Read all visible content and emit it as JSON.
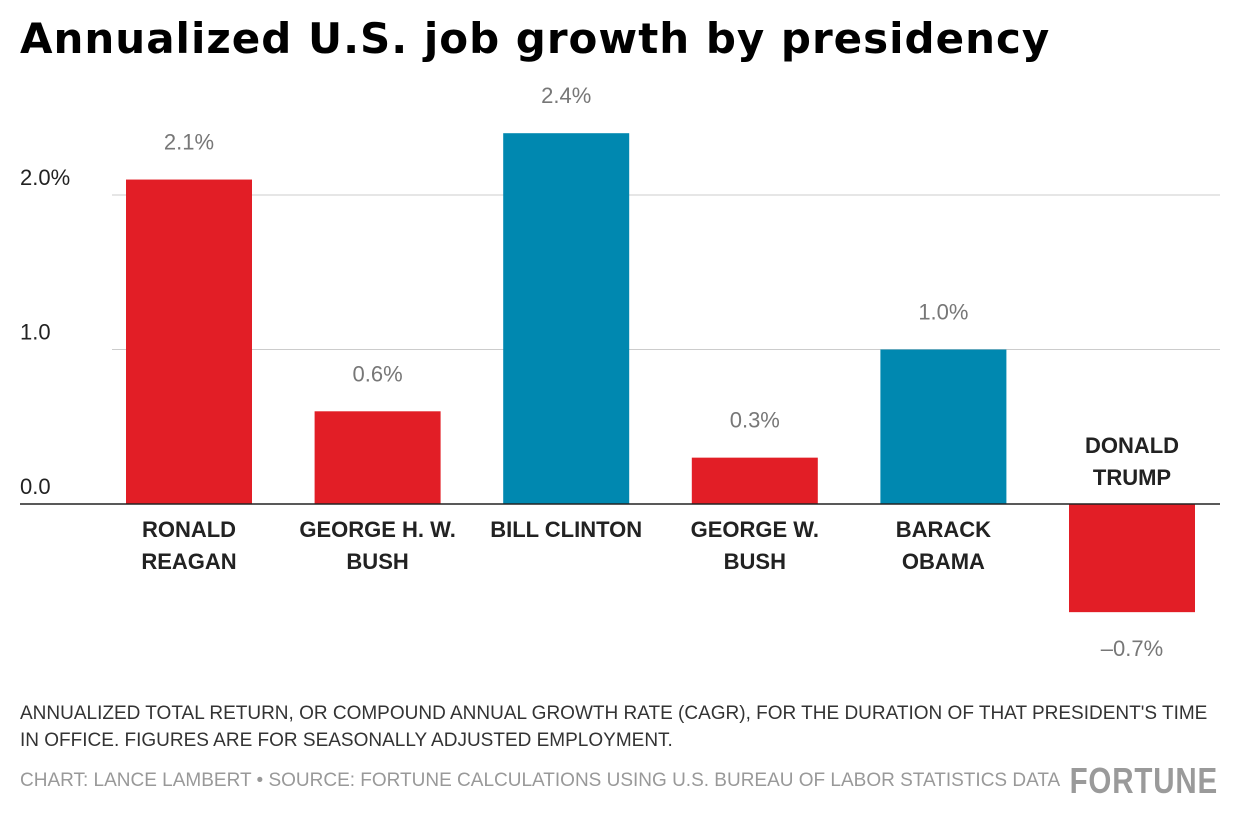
{
  "chart_data": {
    "type": "bar",
    "title": "Annualized U.S. job growth by presidency",
    "categories": [
      [
        "RONALD",
        "REAGAN"
      ],
      [
        "GEORGE H. W.",
        "BUSH"
      ],
      [
        "BILL CLINTON"
      ],
      [
        "GEORGE W.",
        "BUSH"
      ],
      [
        "BARACK",
        "OBAMA"
      ],
      [
        "DONALD",
        "TRUMP"
      ]
    ],
    "values": [
      2.1,
      0.6,
      2.4,
      0.3,
      1.0,
      -0.7
    ],
    "value_labels": [
      "2.1%",
      "0.6%",
      "2.4%",
      "0.3%",
      "1.0%",
      "–0.7%"
    ],
    "colors": [
      "#e21e26",
      "#e21e26",
      "#0088b0",
      "#e21e26",
      "#0088b0",
      "#e21e26"
    ],
    "yticks": [
      0,
      1,
      2
    ],
    "ytick_labels": [
      "0.0",
      "1.0",
      "2.0%"
    ],
    "ylim": [
      -0.7,
      2.4
    ],
    "grid": true,
    "xlabel": "",
    "ylabel": ""
  },
  "note": "ANNUALIZED TOTAL RETURN, OR COMPOUND ANNUAL GROWTH RATE (CAGR), FOR THE DURATION OF THAT PRESIDENT'S TIME IN OFFICE. FIGURES ARE FOR SEASONALLY ADJUSTED EMPLOYMENT.",
  "credit": "CHART: LANCE LAMBERT • SOURCE: FORTUNE CALCULATIONS USING U.S. BUREAU OF LABOR STATISTICS DATA",
  "logo": "FORTUNE"
}
